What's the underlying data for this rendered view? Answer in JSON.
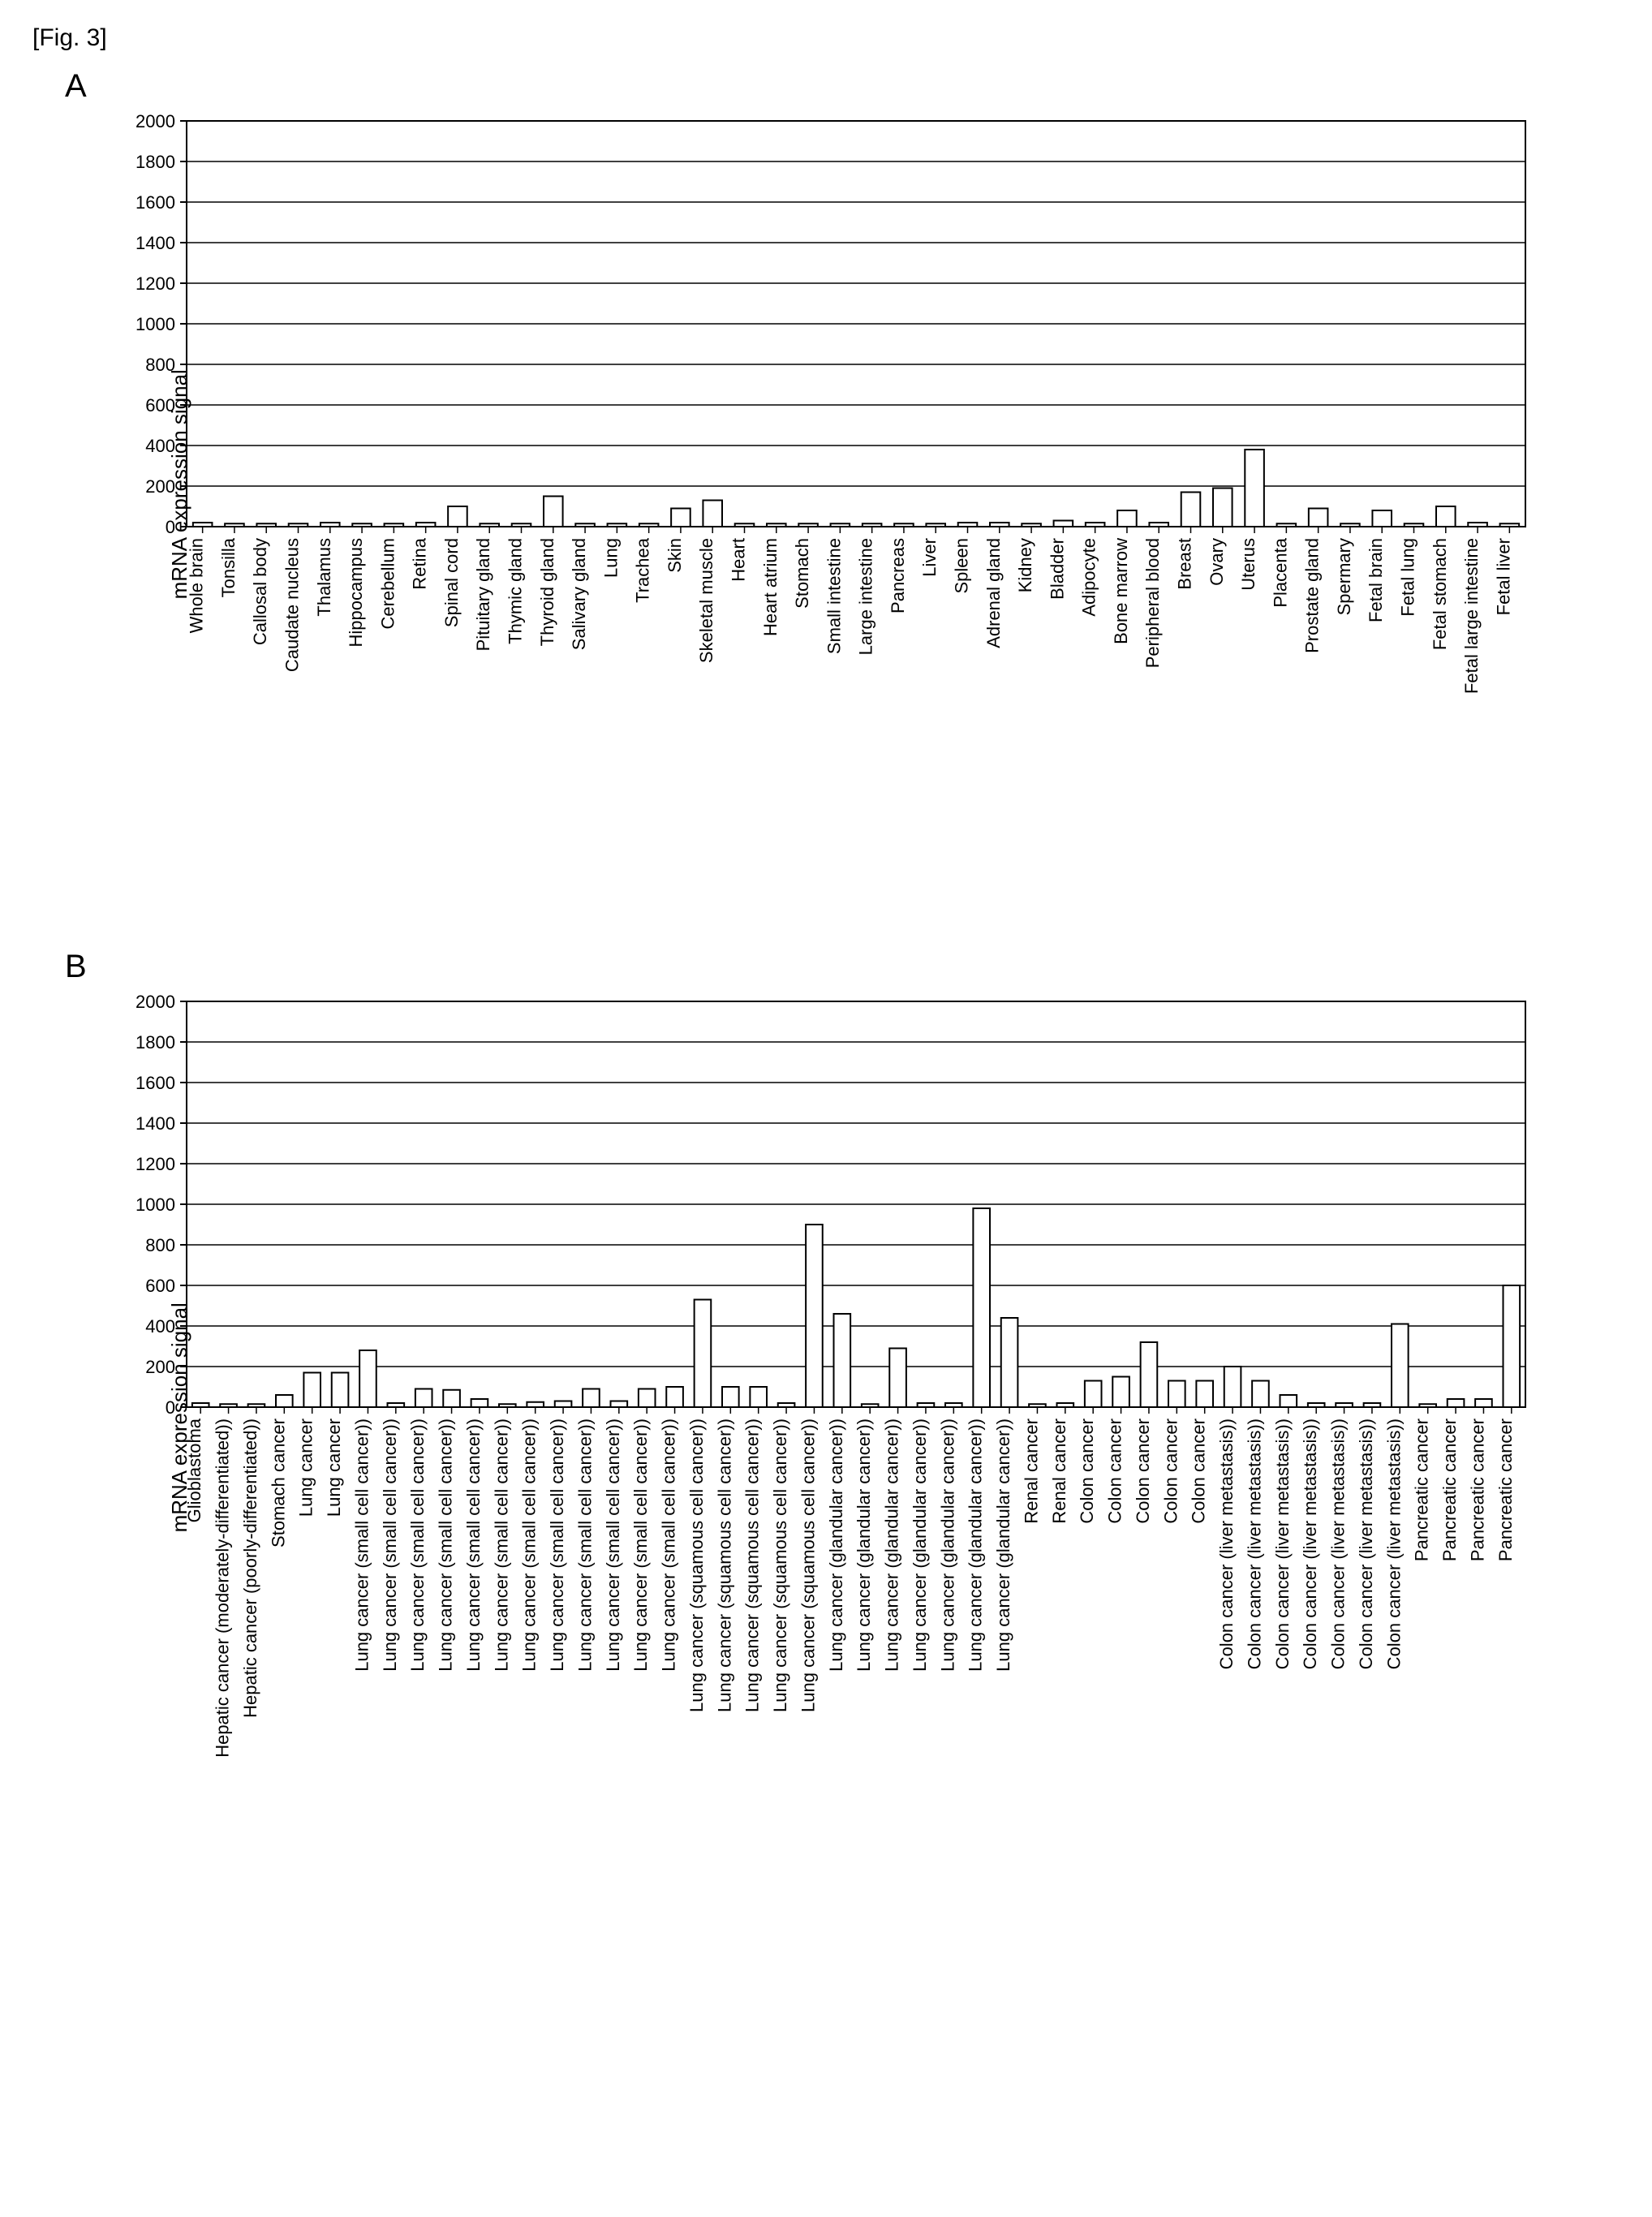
{
  "figure_caption": "[Fig. 3]",
  "panels": {
    "A": {
      "panel_letter": "A",
      "y_label": "mRNA expression signal",
      "ylim": [
        0,
        2000
      ],
      "ytick_step": 200,
      "categories": [
        "Whole brain",
        "Tonsilla",
        "Callosal body",
        "Caudate nucleus",
        "Thalamus",
        "Hippocampus",
        "Cerebellum",
        "Retina",
        "Spinal cord",
        "Pituitary gland",
        "Thymic gland",
        "Thyroid gland",
        "Salivary gland",
        "Lung",
        "Trachea",
        "Skin",
        "Skeletal muscle",
        "Heart",
        "Heart atrium",
        "Stomach",
        "Small intestine",
        "Large intestine",
        "Pancreas",
        "Liver",
        "Spleen",
        "Adrenal gland",
        "Kidney",
        "Bladder",
        "Adipocyte",
        "Bone marrow",
        "Peripheral blood",
        "Breast",
        "Ovary",
        "Uterus",
        "Placenta",
        "Prostate gland",
        "Spermary",
        "Fetal brain",
        "Fetal lung",
        "Fetal stomach",
        "Fetal large intestine",
        "Fetal liver"
      ],
      "values": [
        20,
        15,
        15,
        15,
        20,
        15,
        15,
        20,
        100,
        15,
        15,
        150,
        15,
        15,
        15,
        90,
        130,
        15,
        15,
        15,
        15,
        15,
        15,
        15,
        20,
        20,
        15,
        30,
        20,
        80,
        20,
        170,
        190,
        380,
        15,
        90,
        15,
        80,
        15,
        100,
        20,
        15
      ]
    },
    "B": {
      "panel_letter": "B",
      "y_label": "mRNA expression signal",
      "ylim": [
        0,
        2000
      ],
      "ytick_step": 200,
      "categories": [
        "Glioblastoma",
        "Hepatic cancer (moderately-differentiated))",
        "Hepatic cancer (poorly-differentiated))",
        "Stomach cancer",
        "Lung cancer",
        "Lung cancer",
        "Lung cancer (small cell cancer))",
        "Lung cancer (small cell cancer))",
        "Lung cancer (small cell cancer))",
        "Lung cancer (small cell cancer))",
        "Lung cancer (small cell cancer))",
        "Lung cancer (small cell cancer))",
        "Lung cancer (small cell cancer))",
        "Lung cancer (small cell cancer))",
        "Lung cancer (small cell cancer))",
        "Lung cancer (small cell cancer))",
        "Lung cancer (small cell cancer))",
        "Lung cancer (small cell cancer))",
        "Lung cancer (squamous cell cancer))",
        "Lung cancer (squamous cell cancer))",
        "Lung cancer (squamous cell cancer))",
        "Lung cancer (squamous cell cancer))",
        "Lung cancer (squamous cell cancer))",
        "Lung cancer (glandular cancer))",
        "Lung cancer (glandular cancer))",
        "Lung cancer (glandular cancer))",
        "Lung cancer (glandular cancer))",
        "Lung cancer (glandular cancer))",
        "Lung cancer (glandular cancer))",
        "Lung cancer (glandular cancer))",
        "Renal cancer",
        "Renal cancer",
        "Colon cancer",
        "Colon cancer",
        "Colon cancer",
        "Colon cancer",
        "Colon cancer",
        "Colon cancer (liver metastasis))",
        "Colon cancer (liver metastasis))",
        "Colon cancer (liver metastasis))",
        "Colon cancer (liver metastasis))",
        "Colon cancer (liver metastasis))",
        "Colon cancer (liver metastasis))",
        "Colon cancer (liver metastasis))",
        "Pancreatic cancer",
        "Pancreatic cancer",
        "Pancreatic cancer",
        "Pancreatic cancer"
      ],
      "values": [
        20,
        15,
        15,
        60,
        170,
        170,
        280,
        20,
        90,
        85,
        40,
        15,
        25,
        30,
        90,
        30,
        90,
        100,
        530,
        100,
        100,
        20,
        900,
        460,
        15,
        290,
        20,
        20,
        980,
        440,
        15,
        20,
        130,
        150,
        320,
        130,
        130,
        200,
        130,
        60,
        20,
        20,
        20,
        410,
        15,
        40,
        40,
        600
      ]
    }
  },
  "style": {
    "bar_fill": "#ffffff",
    "bar_stroke": "#000000",
    "bar_stroke_width": 2,
    "grid_color": "#000000",
    "background_color": "#ffffff",
    "axis_font_size_pt": 22,
    "tick_label_font_size_pt": 22,
    "category_label_font_size_pt": 22,
    "bar_width_ratio": 0.6,
    "plot_width_a": 1650,
    "plot_height_a": 500,
    "plot_width_b": 1650,
    "plot_height_b": 500,
    "label_area_height": 480
  }
}
